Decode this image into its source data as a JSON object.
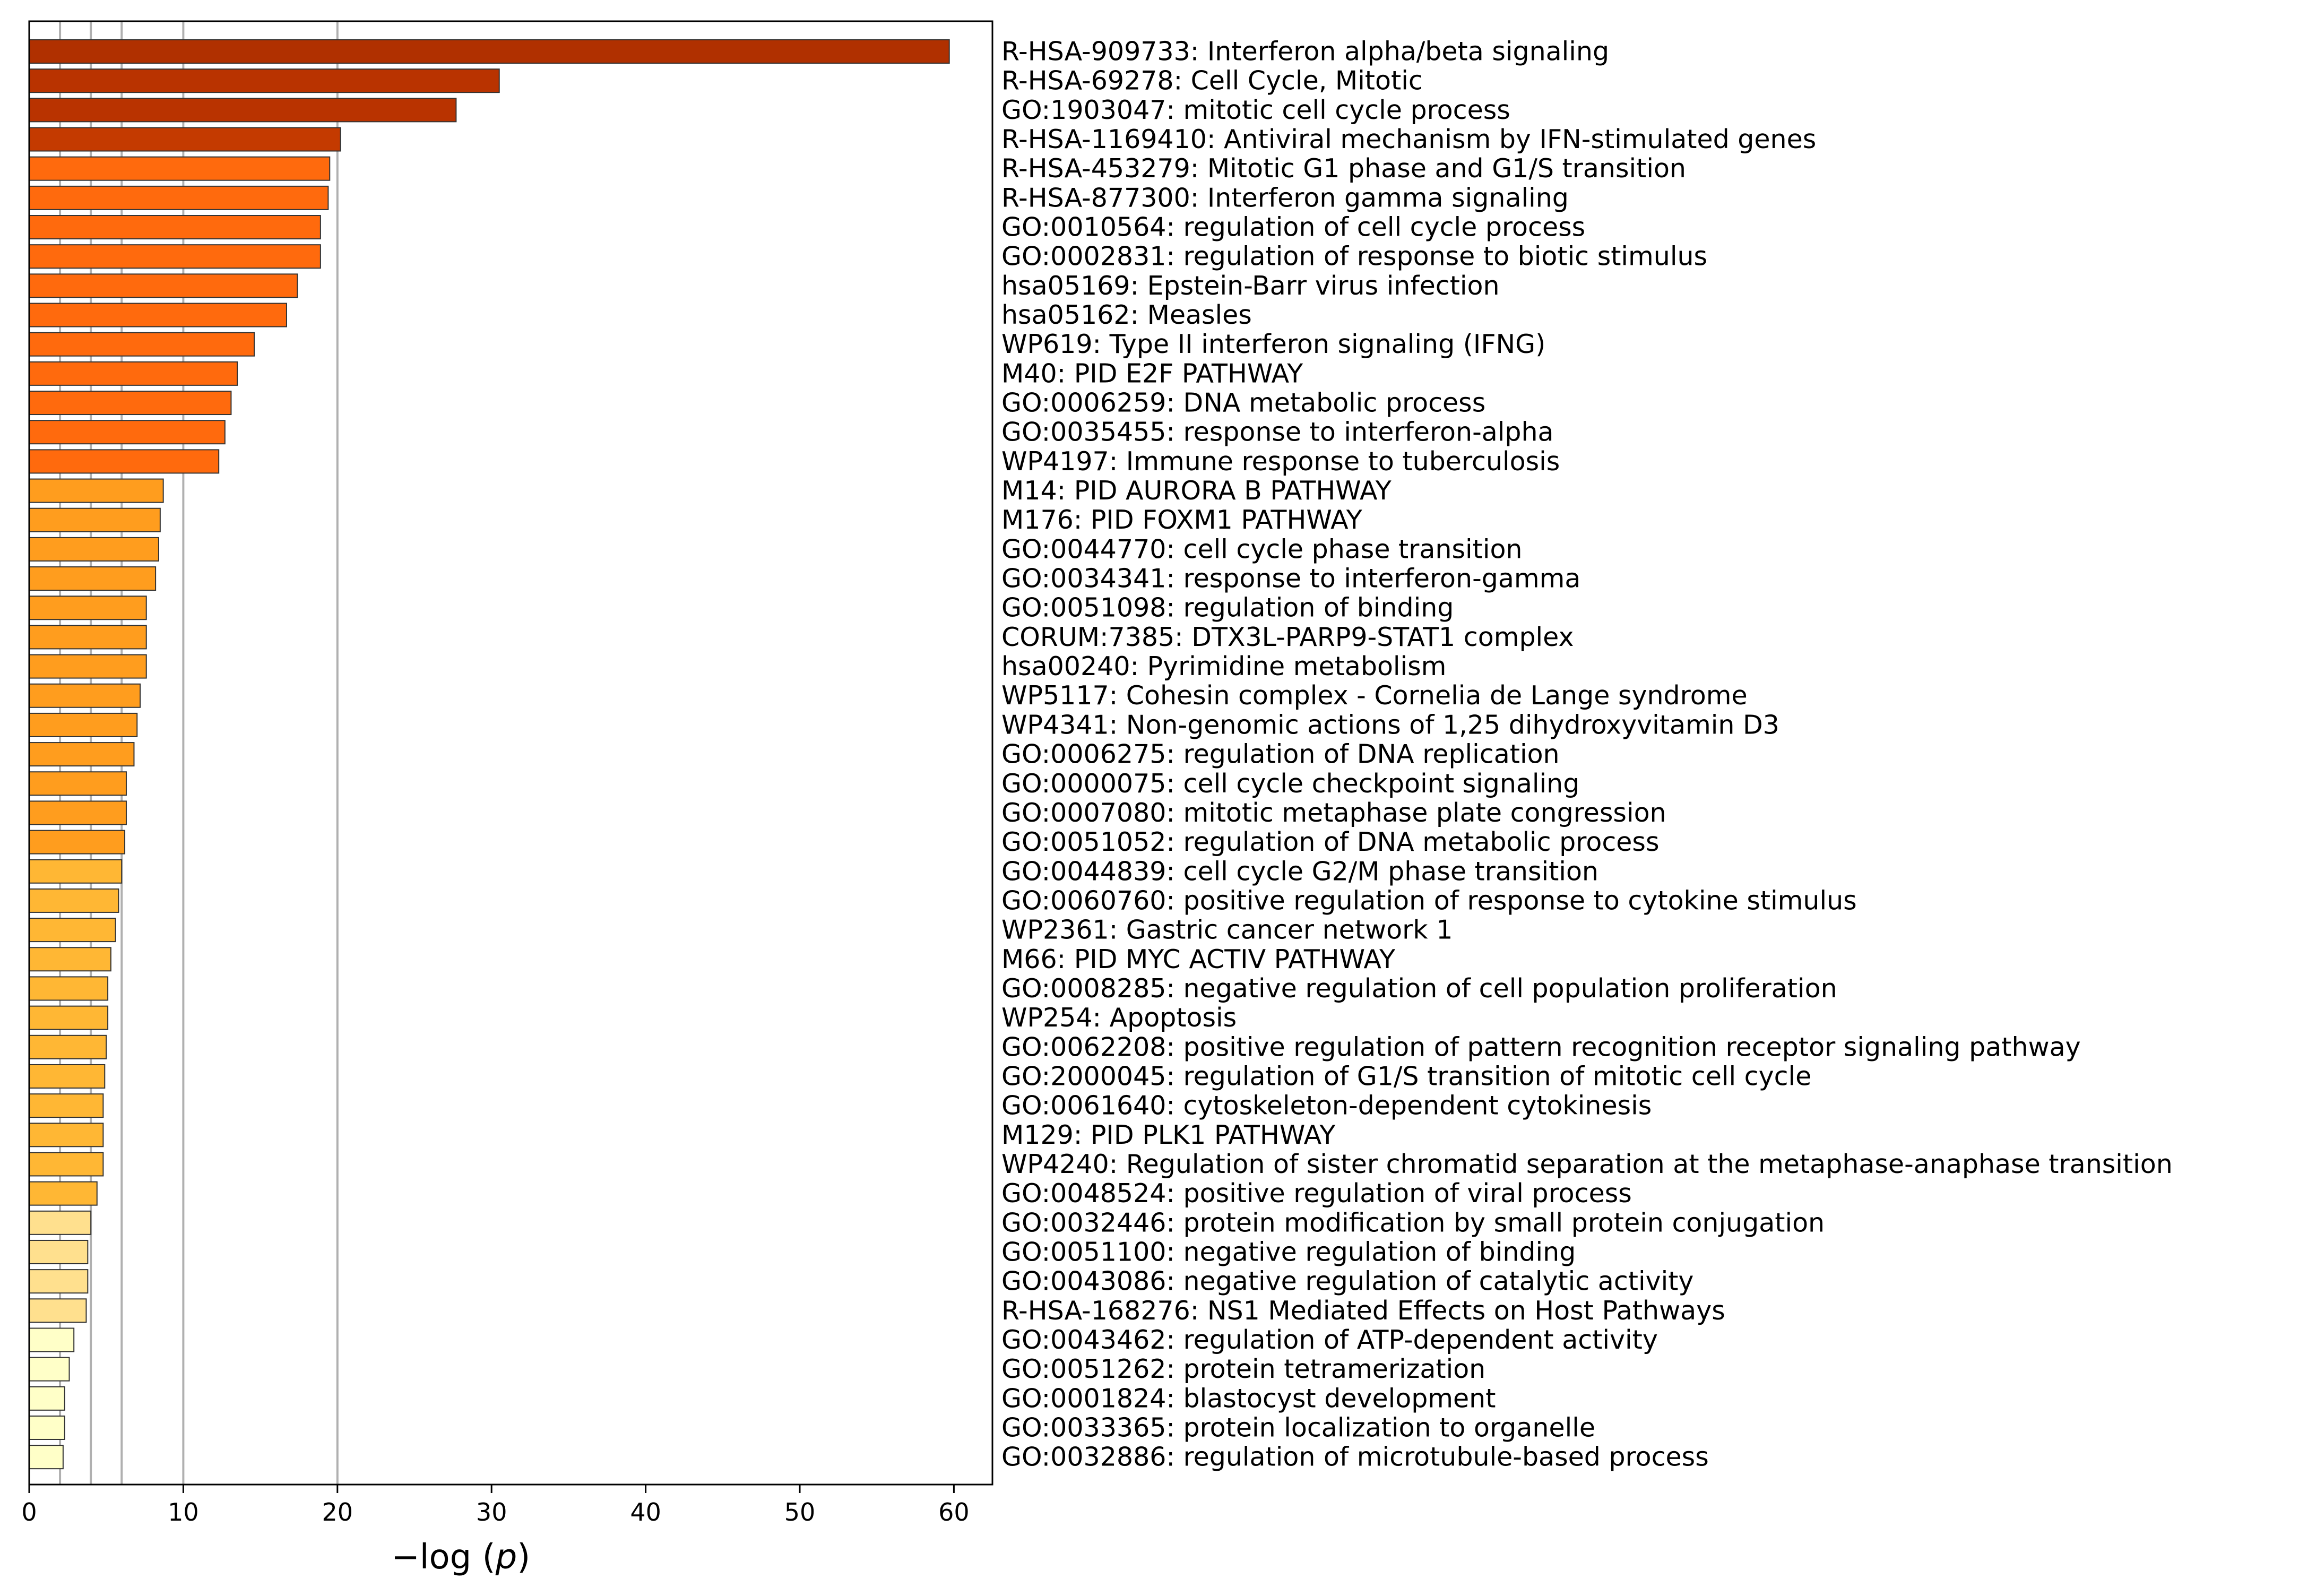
{
  "chart_data": {
    "type": "bar",
    "orientation": "horizontal",
    "title": "",
    "xlabel": "−log (p)",
    "xlabel_parts": [
      "−log (",
      "p",
      ")"
    ],
    "ylabel": "",
    "xlim": [
      0,
      62.5
    ],
    "xticks": [
      0,
      10,
      20,
      30,
      40,
      50,
      60
    ],
    "vertical_reference_lines": [
      2,
      4,
      6,
      10,
      20
    ],
    "grid": false,
    "legend": null,
    "label_side": "right",
    "categories": [
      "R-HSA-909733: Interferon alpha/beta signaling",
      "R-HSA-69278: Cell Cycle, Mitotic",
      "GO:1903047: mitotic cell cycle process",
      "R-HSA-1169410: Antiviral mechanism by IFN-stimulated genes",
      "R-HSA-453279: Mitotic G1 phase and G1/S transition",
      "R-HSA-877300: Interferon gamma signaling",
      "GO:0010564: regulation of cell cycle process",
      "GO:0002831: regulation of response to biotic stimulus",
      "hsa05169: Epstein-Barr virus infection",
      "hsa05162: Measles",
      "WP619: Type II interferon signaling (IFNG)",
      "M40: PID E2F PATHWAY",
      "GO:0006259: DNA metabolic process",
      "GO:0035455: response to interferon-alpha",
      "WP4197: Immune response to tuberculosis",
      "M14: PID AURORA B PATHWAY",
      "M176: PID FOXM1 PATHWAY",
      "GO:0044770: cell cycle phase transition",
      "GO:0034341: response to interferon-gamma",
      "GO:0051098: regulation of binding",
      "CORUM:7385: DTX3L-PARP9-STAT1 complex",
      "hsa00240: Pyrimidine metabolism",
      "WP5117: Cohesin complex - Cornelia de Lange syndrome",
      "WP4341: Non-genomic actions of 1,25 dihydroxyvitamin D3",
      "GO:0006275: regulation of DNA replication",
      "GO:0000075: cell cycle checkpoint signaling",
      "GO:0007080: mitotic metaphase plate congression",
      "GO:0051052: regulation of DNA metabolic process",
      "GO:0044839: cell cycle G2/M phase transition",
      "GO:0060760: positive regulation of response to cytokine stimulus",
      "WP2361: Gastric cancer network 1",
      "M66: PID MYC ACTIV PATHWAY",
      "GO:0008285: negative regulation of cell population proliferation",
      "WP254: Apoptosis",
      "GO:0062208: positive regulation of pattern recognition receptor signaling pathway",
      "GO:2000045: regulation of G1/S transition of mitotic cell cycle",
      "GO:0061640: cytoskeleton-dependent cytokinesis",
      "M129: PID PLK1 PATHWAY",
      "WP4240: Regulation of sister chromatid separation at the metaphase-anaphase transition",
      "GO:0048524: positive regulation of viral process",
      "GO:0032446: protein modification by small protein conjugation",
      "GO:0051100: negative regulation of binding",
      "GO:0043086: negative regulation of catalytic activity",
      "R-HSA-168276: NS1 Mediated Effects on Host Pathways",
      "GO:0043462: regulation of ATP-dependent activity",
      "GO:0051262: protein tetramerization",
      "GO:0001824: blastocyst development",
      "GO:0033365: protein localization to organelle",
      "GO:0032886: regulation of microtubule-based process"
    ],
    "values": [
      59.7,
      30.5,
      27.7,
      20.2,
      19.5,
      19.4,
      18.9,
      18.9,
      17.4,
      16.7,
      14.6,
      13.5,
      13.1,
      12.7,
      12.3,
      8.7,
      8.5,
      8.4,
      8.2,
      7.6,
      7.6,
      7.6,
      7.2,
      7.0,
      6.8,
      6.3,
      6.3,
      6.2,
      6.0,
      5.8,
      5.6,
      5.3,
      5.1,
      5.1,
      5.0,
      4.9,
      4.8,
      4.8,
      4.8,
      4.4,
      4.0,
      3.8,
      3.8,
      3.7,
      2.9,
      2.6,
      2.3,
      2.3,
      2.2
    ],
    "bar_colors": [
      "#b03000",
      "#b93300",
      "#b93300",
      "#c43a00",
      "#ff6a0d",
      "#ff6a0d",
      "#ff6a0d",
      "#ff6a0d",
      "#ff6a0d",
      "#ff6a0d",
      "#ff6a0d",
      "#ff6a0d",
      "#ff6a0d",
      "#ff6a0d",
      "#ff6a0d",
      "#ff9d1e",
      "#ff9d1e",
      "#ff9d1e",
      "#ff9d1e",
      "#ff9d1e",
      "#ff9d1e",
      "#ff9d1e",
      "#ff9d1e",
      "#ff9d1e",
      "#ff9d1e",
      "#ff9d1e",
      "#ff9d1e",
      "#ff9d1e",
      "#ffb734",
      "#ffb734",
      "#ffb734",
      "#ffb734",
      "#ffb734",
      "#ffb734",
      "#ffb734",
      "#ffb734",
      "#ffb734",
      "#ffb734",
      "#ffb734",
      "#ffb734",
      "#ffe08e",
      "#ffe08e",
      "#ffe08e",
      "#ffe08e",
      "#ffffc8",
      "#ffffc8",
      "#ffffc8",
      "#ffffc8",
      "#ffffc8"
    ],
    "bar_edge_color": "#333333",
    "reference_line_color": "#b0b0b0"
  }
}
